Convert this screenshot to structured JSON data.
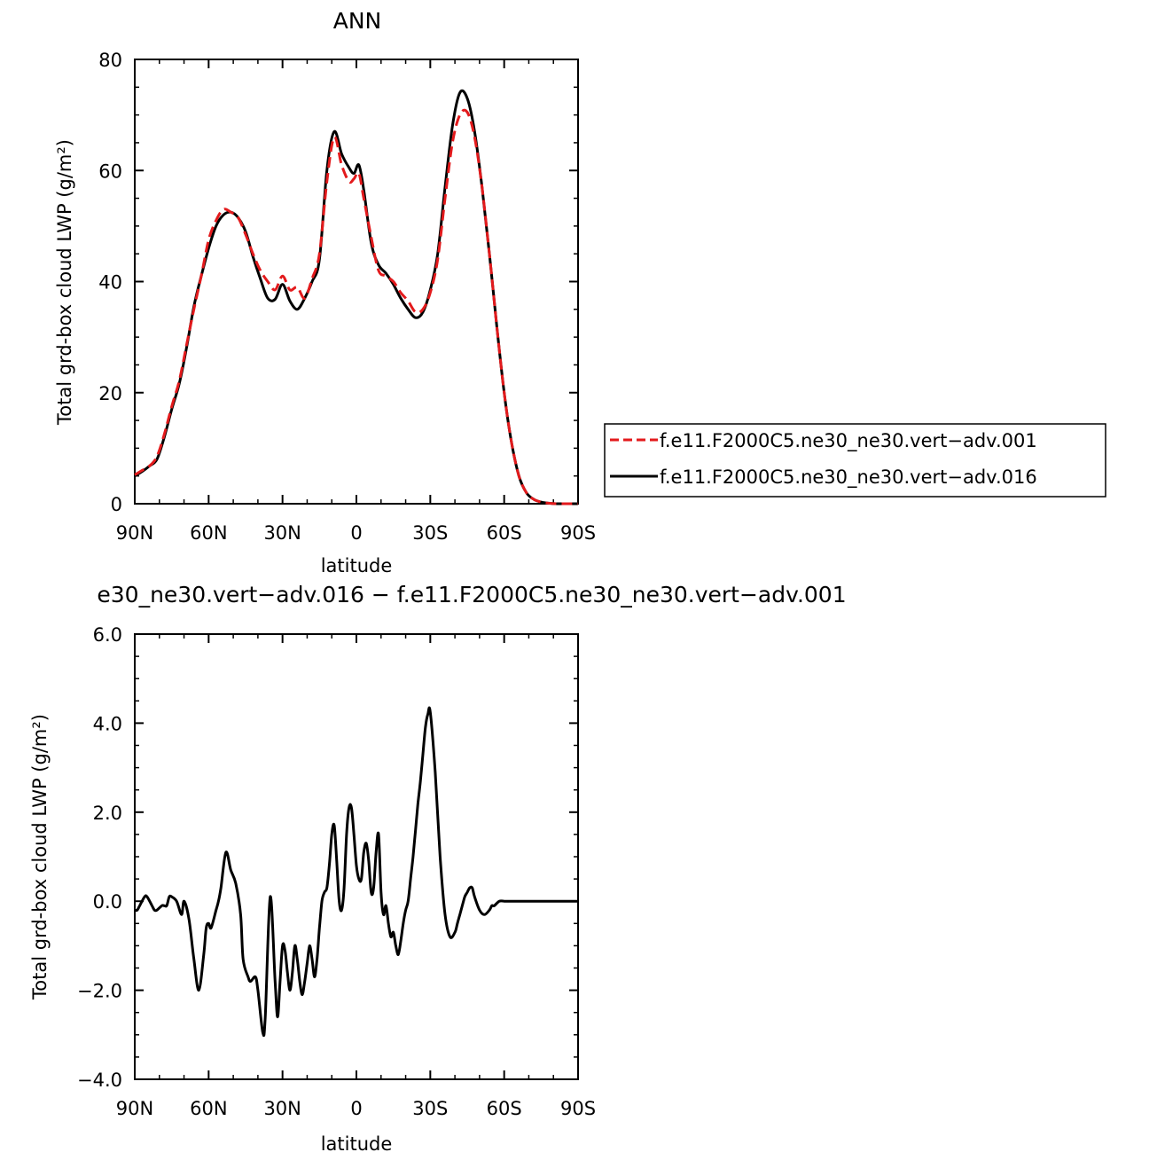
{
  "chart_data": [
    {
      "type": "line",
      "title": "ANN",
      "xlabel": "latitude",
      "ylabel": "Total grd-box cloud LWP (g/m²)",
      "xlim": [
        90,
        -90
      ],
      "ylim": [
        0,
        80
      ],
      "x_ticks": [
        90,
        60,
        30,
        0,
        -30,
        -60,
        -90
      ],
      "x_tick_labels": [
        "90N",
        "60N",
        "30N",
        "0",
        "30S",
        "60S",
        "90S"
      ],
      "y_ticks": [
        0,
        20,
        40,
        60,
        80
      ],
      "y_tick_labels": [
        "0",
        "20",
        "40",
        "60",
        "80"
      ],
      "legend_position": "right",
      "series": [
        {
          "name": "f.e11.F2000C5.ne30_ne30.vert−adv.001",
          "color": "#e31a1c",
          "style": "dashed",
          "x": [
            90,
            87,
            84,
            81,
            78,
            75,
            72,
            69,
            66,
            63,
            60,
            57,
            54,
            51,
            48,
            45,
            42,
            39,
            36,
            33,
            30,
            27,
            24,
            21,
            18,
            15,
            12,
            9,
            6,
            3,
            1,
            -1,
            -3,
            -6,
            -9,
            -12,
            -15,
            -18,
            -21,
            -24,
            -27,
            -30,
            -33,
            -36,
            -39,
            -42,
            -45,
            -48,
            -51,
            -54,
            -57,
            -60,
            -63,
            -66,
            -69,
            -72,
            -75,
            -78,
            -81,
            -84,
            -87,
            -90
          ],
          "y": [
            5.2,
            6.0,
            6.8,
            8.5,
            12.5,
            17.5,
            22.0,
            28.5,
            35.0,
            41.0,
            47.5,
            51.0,
            53.0,
            52.5,
            51.5,
            48.5,
            45.0,
            42.0,
            40.0,
            38.5,
            41.0,
            38.5,
            39.0,
            37.0,
            40.5,
            45.0,
            58.0,
            66.0,
            61.0,
            58.0,
            58.5,
            59.5,
            55.0,
            48.0,
            42.0,
            41.0,
            40.0,
            38.0,
            36.5,
            34.5,
            35.0,
            38.0,
            44.0,
            55.0,
            65.0,
            70.0,
            70.5,
            66.0,
            57.0,
            45.0,
            32.0,
            20.0,
            11.0,
            5.0,
            2.0,
            0.8,
            0.3,
            0.1,
            0.0,
            0.0,
            0.0,
            0.0
          ]
        },
        {
          "name": "f.e11.F2000C5.ne30_ne30.vert−adv.016",
          "color": "#000000",
          "style": "solid",
          "x": [
            90,
            87,
            84,
            81,
            78,
            75,
            72,
            69,
            66,
            63,
            60,
            57,
            54,
            51,
            48,
            45,
            42,
            39,
            36,
            33,
            30,
            27,
            24,
            21,
            18,
            15,
            12,
            9,
            6,
            3,
            1,
            -1,
            -3,
            -6,
            -9,
            -12,
            -15,
            -18,
            -21,
            -24,
            -27,
            -30,
            -33,
            -36,
            -39,
            -42,
            -45,
            -48,
            -51,
            -54,
            -57,
            -60,
            -63,
            -66,
            -69,
            -72,
            -75,
            -78,
            -81,
            -84,
            -87,
            -90
          ],
          "y": [
            5.0,
            5.8,
            6.8,
            8.0,
            12.0,
            17.0,
            21.5,
            28.0,
            35.5,
            41.0,
            46.0,
            50.0,
            52.0,
            52.5,
            51.5,
            49.0,
            44.5,
            40.5,
            37.0,
            36.8,
            39.5,
            36.5,
            35.0,
            37.0,
            40.0,
            44.0,
            60.0,
            67.0,
            63.0,
            60.5,
            59.5,
            61.0,
            56.5,
            47.0,
            43.0,
            41.5,
            39.5,
            37.0,
            35.0,
            33.5,
            34.5,
            38.5,
            45.0,
            57.0,
            68.0,
            74.0,
            73.0,
            67.0,
            57.0,
            45.0,
            32.0,
            20.0,
            11.0,
            5.0,
            2.0,
            0.8,
            0.3,
            0.1,
            0.0,
            0.0,
            0.0,
            0.0
          ]
        }
      ]
    },
    {
      "type": "line",
      "title": "e30_ne30.vert−adv.016 − f.e11.F2000C5.ne30_ne30.vert−adv.001",
      "xlabel": "latitude",
      "ylabel": "Total grd-box cloud LWP (g/m²)",
      "xlim": [
        90,
        -90
      ],
      "ylim": [
        -4,
        6
      ],
      "x_ticks": [
        90,
        60,
        30,
        0,
        -30,
        -60,
        -90
      ],
      "x_tick_labels": [
        "90N",
        "60N",
        "30N",
        "0",
        "30S",
        "60S",
        "90S"
      ],
      "y_ticks": [
        -4,
        -2,
        0,
        2,
        4,
        6
      ],
      "y_tick_labels": [
        "−4.0",
        "−2.0",
        "0.0",
        "2.0",
        "4.0",
        "6.0"
      ],
      "series": [
        {
          "color": "#000000",
          "style": "solid",
          "x": [
            90,
            89,
            88,
            86,
            85,
            83,
            82,
            81,
            79,
            78,
            77,
            76,
            75,
            73,
            71,
            70,
            68,
            66,
            64,
            62,
            61,
            60,
            59,
            57,
            56,
            55,
            53,
            51,
            49,
            47,
            46,
            44,
            43,
            41,
            40,
            38,
            37,
            35,
            33,
            32,
            31,
            30,
            29,
            28,
            27,
            26,
            25,
            24,
            23,
            22,
            21,
            20,
            19,
            18,
            17,
            16,
            15,
            14,
            13,
            12,
            11,
            10,
            9,
            8,
            7,
            6,
            5,
            4,
            3,
            2,
            1,
            0,
            -1,
            -2,
            -3,
            -4,
            -5,
            -6,
            -7,
            -8,
            -9,
            -10,
            -11,
            -12,
            -13,
            -14,
            -15,
            -16,
            -17,
            -18,
            -19,
            -20,
            -21,
            -22,
            -23,
            -24,
            -25,
            -26,
            -27,
            -28,
            -29,
            -30,
            -32,
            -34,
            -36,
            -38,
            -40,
            -41,
            -42,
            -43,
            -44,
            -45,
            -46,
            -47,
            -48,
            -50,
            -52,
            -54,
            -55,
            -56,
            -58,
            -60,
            -61,
            -62,
            -63,
            -64,
            -65,
            -66,
            -67,
            -68,
            -70,
            -72,
            -74,
            -76,
            -78,
            -80,
            -82,
            -84,
            -86,
            -88,
            -90
          ],
          "y": [
            -0.2,
            -0.2,
            -0.1,
            0.1,
            0.1,
            -0.1,
            -0.2,
            -0.2,
            -0.1,
            -0.1,
            -0.1,
            0.1,
            0.1,
            0.0,
            -0.3,
            0.0,
            -0.4,
            -1.3,
            -2.0,
            -1.2,
            -0.6,
            -0.5,
            -0.6,
            -0.2,
            0.0,
            0.3,
            1.1,
            0.7,
            0.4,
            -0.3,
            -1.3,
            -1.7,
            -1.8,
            -1.7,
            -2.0,
            -2.95,
            -2.6,
            0.1,
            -1.8,
            -2.6,
            -1.8,
            -1.0,
            -1.1,
            -1.6,
            -2.0,
            -1.6,
            -1.0,
            -1.3,
            -1.8,
            -2.1,
            -1.8,
            -1.4,
            -1.0,
            -1.3,
            -1.7,
            -1.3,
            -0.6,
            0.0,
            0.2,
            0.3,
            0.8,
            1.5,
            1.7,
            0.9,
            0.0,
            -0.2,
            0.3,
            1.5,
            2.1,
            2.1,
            1.5,
            0.8,
            0.5,
            0.5,
            1.1,
            1.3,
            0.9,
            0.2,
            0.3,
            1.1,
            1.5,
            0.2,
            -0.3,
            -0.1,
            -0.5,
            -0.8,
            -0.7,
            -1.0,
            -1.2,
            -0.9,
            -0.5,
            -0.2,
            0.0,
            0.5,
            1.0,
            1.6,
            2.2,
            2.7,
            3.3,
            3.9,
            4.2,
            4.25,
            2.9,
            1.0,
            -0.3,
            -0.8,
            -0.7,
            -0.5,
            -0.3,
            -0.1,
            0.1,
            0.2,
            0.3,
            0.3,
            0.1,
            -0.2,
            -0.3,
            -0.2,
            -0.1,
            -0.1,
            0.0,
            0.0,
            0.0,
            0.0,
            0.0,
            0.0,
            0.0,
            0.0,
            0.0,
            0.0,
            0.0,
            0.0,
            0.0,
            0.0,
            0.0,
            0.0,
            0.0,
            0.0,
            0.0,
            0.0,
            0.0
          ]
        }
      ]
    }
  ]
}
